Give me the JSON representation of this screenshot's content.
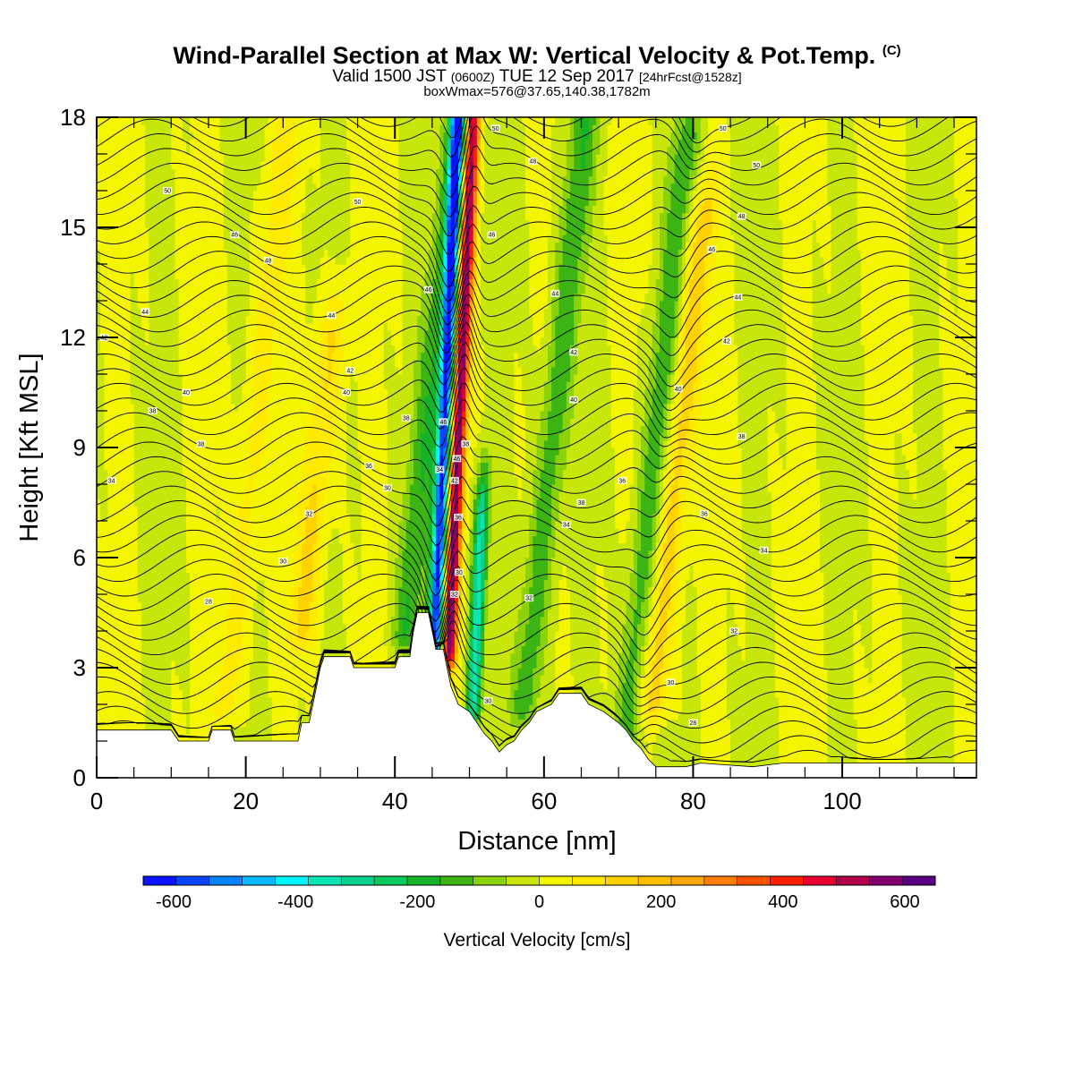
{
  "header": {
    "title_main": "Wind-Parallel Section at Max W: Vertical Velocity & Pot.Temp.",
    "title_mark": "(C)",
    "valid_prefix": "Valid 1500 JST",
    "valid_utc": "(0600Z)",
    "valid_date": "TUE 12 Sep 2017",
    "forecast": "[24hrFcst@1528z]",
    "box_info": "boxWmax=576@37.65,140.38,1782m"
  },
  "colors": {
    "scale": [
      "#0a14ff",
      "#0a46ff",
      "#0a82ff",
      "#0ab9ff",
      "#00f5ff",
      "#0ae6b4",
      "#0ad28c",
      "#0ac85a",
      "#14b428",
      "#3cb414",
      "#8cd20a",
      "#c8e60a",
      "#f5f500",
      "#ffeb00",
      "#ffd200",
      "#ffbe00",
      "#ffa500",
      "#ff7d00",
      "#ff5000",
      "#ff1e00",
      "#e6002d",
      "#b4004b",
      "#82006e",
      "#5a0082"
    ],
    "terrain": "#ffffff",
    "contour": "#000000"
  },
  "chart_data": {
    "type": "heatmap",
    "title": "Wind-Parallel Section at Max W: Vertical Velocity & Pot.Temp.",
    "xlabel": "Distance [nm]",
    "ylabel": "Height [Kft MSL]",
    "xlim": [
      0,
      118
    ],
    "ylim": [
      0,
      18
    ],
    "x_ticks": [
      0,
      20,
      40,
      60,
      80,
      100
    ],
    "y_ticks": [
      0,
      3,
      6,
      9,
      12,
      15,
      18
    ],
    "field": "Vertical Velocity",
    "colorbar": {
      "title": "Vertical Velocity [cm/s]",
      "min": -650,
      "max": 650,
      "step": 54.17,
      "ticks": [
        -600,
        -400,
        -200,
        0,
        200,
        400,
        600
      ]
    },
    "vertical_velocity_features": [
      {
        "x_center": 46.5,
        "height_range": [
          3.5,
          18
        ],
        "peak_cm_s": -600,
        "kind": "downdraft"
      },
      {
        "x_center": 48.5,
        "height_range": [
          3.5,
          18
        ],
        "peak_cm_s": 576,
        "kind": "updraft"
      },
      {
        "x_center": 52,
        "height_range": [
          2,
          7
        ],
        "peak_cm_s": -350,
        "kind": "downdraft"
      },
      {
        "x_center": 44,
        "height_range": [
          4,
          18
        ],
        "peak_cm_s": -150,
        "kind": "downdraft"
      },
      {
        "x_center": 61,
        "height_range": [
          2,
          18
        ],
        "peak_cm_s": -150,
        "kind": "downdraft"
      },
      {
        "x_center": 75,
        "height_range": [
          1,
          17
        ],
        "peak_cm_s": -150,
        "kind": "downdraft"
      },
      {
        "x_center": 78,
        "height_range": [
          2,
          15
        ],
        "peak_cm_s": 150,
        "kind": "updraft"
      },
      {
        "x_center": 30,
        "height_range": [
          4,
          12
        ],
        "peak_cm_s": 120,
        "kind": "updraft"
      },
      {
        "x_center": 21,
        "height_range": [
          2,
          17
        ],
        "peak_cm_s": 80,
        "kind": "updraft"
      }
    ],
    "terrain_kft": [
      [
        0,
        1.3
      ],
      [
        10,
        1.3
      ],
      [
        11,
        1.0
      ],
      [
        15,
        1.0
      ],
      [
        15.5,
        1.3
      ],
      [
        18,
        1.3
      ],
      [
        18.5,
        1.0
      ],
      [
        27,
        1.0
      ],
      [
        27.5,
        1.5
      ],
      [
        28.5,
        1.5
      ],
      [
        29,
        2.0
      ],
      [
        29.5,
        2.5
      ],
      [
        30,
        3.0
      ],
      [
        30.5,
        3.3
      ],
      [
        34,
        3.3
      ],
      [
        34.5,
        3.0
      ],
      [
        40,
        3.0
      ],
      [
        40.5,
        3.3
      ],
      [
        42,
        3.3
      ],
      [
        42.5,
        4.0
      ],
      [
        43,
        4.5
      ],
      [
        44.5,
        4.5
      ],
      [
        45,
        4.0
      ],
      [
        45.5,
        3.5
      ],
      [
        46.5,
        3.5
      ],
      [
        47,
        3.0
      ],
      [
        47.5,
        2.5
      ],
      [
        48.5,
        2.0
      ],
      [
        50,
        1.8
      ],
      [
        51,
        1.5
      ],
      [
        52,
        1.2
      ],
      [
        53,
        1.0
      ],
      [
        54,
        0.7
      ],
      [
        55,
        0.9
      ],
      [
        56,
        1.0
      ],
      [
        57,
        1.3
      ],
      [
        58,
        1.5
      ],
      [
        59,
        1.8
      ],
      [
        61,
        2.0
      ],
      [
        62,
        2.3
      ],
      [
        65,
        2.3
      ],
      [
        66,
        2.0
      ],
      [
        68,
        1.8
      ],
      [
        70,
        1.5
      ],
      [
        71,
        1.3
      ],
      [
        72,
        1.0
      ],
      [
        73,
        0.8
      ],
      [
        74,
        0.5
      ],
      [
        75,
        0.3
      ],
      [
        79,
        0.3
      ],
      [
        81,
        0.4
      ],
      [
        88,
        0.3
      ],
      [
        92,
        0.4
      ],
      [
        118,
        0.4
      ]
    ],
    "theta_contour_labels": [
      {
        "x": 2,
        "y": 8.1,
        "label": "34"
      },
      {
        "x": 7.5,
        "y": 10.0,
        "label": "38"
      },
      {
        "x": 12,
        "y": 10.5,
        "label": "40"
      },
      {
        "x": 1,
        "y": 12.0,
        "label": "42"
      },
      {
        "x": 6.5,
        "y": 12.7,
        "label": "44"
      },
      {
        "x": 9.5,
        "y": 16.0,
        "label": "50"
      },
      {
        "x": 18.5,
        "y": 14.8,
        "label": "46"
      },
      {
        "x": 23,
        "y": 14.1,
        "label": "48"
      },
      {
        "x": 14,
        "y": 9.1,
        "label": "38"
      },
      {
        "x": 15,
        "y": 4.8,
        "label": "28"
      },
      {
        "x": 25,
        "y": 5.9,
        "label": "30"
      },
      {
        "x": 28.5,
        "y": 7.2,
        "label": "32"
      },
      {
        "x": 36.5,
        "y": 8.5,
        "label": "36"
      },
      {
        "x": 39,
        "y": 7.9,
        "label": "30"
      },
      {
        "x": 31.5,
        "y": 12.6,
        "label": "44"
      },
      {
        "x": 34,
        "y": 11.1,
        "label": "42"
      },
      {
        "x": 33.5,
        "y": 10.5,
        "label": "40"
      },
      {
        "x": 35,
        "y": 15.7,
        "label": "50"
      },
      {
        "x": 41.5,
        "y": 9.8,
        "label": "38"
      },
      {
        "x": 44.5,
        "y": 13.3,
        "label": "46"
      },
      {
        "x": 46.5,
        "y": 9.7,
        "label": "46"
      },
      {
        "x": 46,
        "y": 8.4,
        "label": "34"
      },
      {
        "x": 48,
        "y": 8.1,
        "label": "42"
      },
      {
        "x": 48.3,
        "y": 8.7,
        "label": "46"
      },
      {
        "x": 49.5,
        "y": 9.1,
        "label": "38"
      },
      {
        "x": 48.5,
        "y": 7.1,
        "label": "36"
      },
      {
        "x": 48.6,
        "y": 5.6,
        "label": "30"
      },
      {
        "x": 48,
        "y": 5.0,
        "label": "32"
      },
      {
        "x": 52.5,
        "y": 2.1,
        "label": "30"
      },
      {
        "x": 53.5,
        "y": 17.7,
        "label": "50"
      },
      {
        "x": 58.5,
        "y": 16.8,
        "label": "48"
      },
      {
        "x": 53,
        "y": 14.8,
        "label": "46"
      },
      {
        "x": 61.5,
        "y": 13.2,
        "label": "44"
      },
      {
        "x": 64,
        "y": 11.6,
        "label": "42"
      },
      {
        "x": 64,
        "y": 10.3,
        "label": "40"
      },
      {
        "x": 65,
        "y": 7.5,
        "label": "38"
      },
      {
        "x": 63,
        "y": 6.9,
        "label": "34"
      },
      {
        "x": 58,
        "y": 4.9,
        "label": "32"
      },
      {
        "x": 70.5,
        "y": 8.1,
        "label": "36"
      },
      {
        "x": 78,
        "y": 10.6,
        "label": "40"
      },
      {
        "x": 77,
        "y": 2.6,
        "label": "30"
      },
      {
        "x": 80,
        "y": 1.5,
        "label": "28"
      },
      {
        "x": 84,
        "y": 17.7,
        "label": "50"
      },
      {
        "x": 88.5,
        "y": 16.7,
        "label": "50"
      },
      {
        "x": 86.5,
        "y": 15.3,
        "label": "48"
      },
      {
        "x": 82.5,
        "y": 14.4,
        "label": "46"
      },
      {
        "x": 86,
        "y": 13.1,
        "label": "44"
      },
      {
        "x": 84.5,
        "y": 11.9,
        "label": "42"
      },
      {
        "x": 86.5,
        "y": 9.3,
        "label": "38"
      },
      {
        "x": 81.5,
        "y": 7.2,
        "label": "36"
      },
      {
        "x": 89.5,
        "y": 6.2,
        "label": "34"
      },
      {
        "x": 85.5,
        "y": 4.0,
        "label": "32"
      }
    ]
  }
}
